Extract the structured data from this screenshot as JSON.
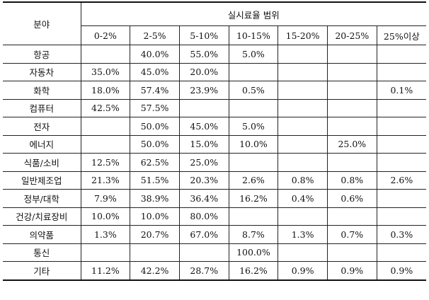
{
  "table": {
    "header_field": "분야",
    "header_group": "실시료율 범위",
    "ranges": [
      "0-2%",
      "2-5%",
      "5-10%",
      "10-15%",
      "15-20%",
      "20-25%",
      "25%이상"
    ],
    "rows": [
      {
        "field": "항공",
        "values": [
          "",
          "40.0%",
          "55.0%",
          "5.0%",
          "",
          "",
          ""
        ]
      },
      {
        "field": "자동차",
        "values": [
          "35.0%",
          "45.0%",
          "20.0%",
          "",
          "",
          "",
          ""
        ]
      },
      {
        "field": "화학",
        "values": [
          "18.0%",
          "57.4%",
          "23.9%",
          "0.5%",
          "",
          "",
          "0.1%"
        ]
      },
      {
        "field": "컴퓨터",
        "values": [
          "42.5%",
          "57.5%",
          "",
          "",
          "",
          "",
          ""
        ]
      },
      {
        "field": "전자",
        "values": [
          "",
          "50.0%",
          "45.0%",
          "5.0%",
          "",
          "",
          ""
        ]
      },
      {
        "field": "에너지",
        "values": [
          "",
          "50.0%",
          "15.0%",
          "10.0%",
          "",
          "25.0%",
          ""
        ]
      },
      {
        "field": "식품/소비",
        "values": [
          "12.5%",
          "62.5%",
          "25.0%",
          "",
          "",
          "",
          ""
        ]
      },
      {
        "field": "일반제조업",
        "values": [
          "21.3%",
          "51.5%",
          "20.3%",
          "2.6%",
          "0.8%",
          "0.8%",
          "2.6%"
        ]
      },
      {
        "field": "정부/대학",
        "values": [
          "7.9%",
          "38.9%",
          "36.4%",
          "16.2%",
          "0.4%",
          "0.6%",
          ""
        ]
      },
      {
        "field": "건강/치료장비",
        "values": [
          "10.0%",
          "10.0%",
          "80.0%",
          "",
          "",
          "",
          ""
        ]
      },
      {
        "field": "의약품",
        "values": [
          "1.3%",
          "20.7%",
          "67.0%",
          "8.7%",
          "1.3%",
          "0.7%",
          "0.3%"
        ]
      },
      {
        "field": "통신",
        "values": [
          "",
          "",
          "",
          "100.0%",
          "",
          "",
          ""
        ]
      },
      {
        "field": "기타",
        "values": [
          "11.2%",
          "42.2%",
          "28.7%",
          "16.2%",
          "0.9%",
          "0.9%",
          "0.9%"
        ]
      }
    ]
  }
}
